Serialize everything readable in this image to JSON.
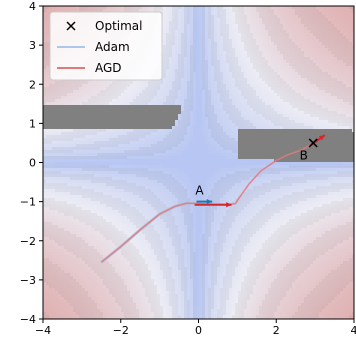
{
  "chart_data": {
    "type": "line",
    "xlim": [
      -4,
      4
    ],
    "ylim": [
      -4,
      4
    ],
    "x_ticks": [
      -4,
      -2,
      0,
      2,
      4
    ],
    "y_ticks": [
      -4,
      -3,
      -2,
      -1,
      0,
      1,
      2,
      3,
      4
    ],
    "x_tick_labels": [
      "−4",
      "−2",
      "0",
      "2",
      "4"
    ],
    "y_tick_labels": [
      "−4",
      "−3",
      "−2",
      "−1",
      "0",
      "1",
      "2",
      "3",
      "4"
    ],
    "grid": false,
    "legend_position": "top-left",
    "legend": [
      {
        "label": "Optimal",
        "marker": "x",
        "color": "#000000"
      },
      {
        "label": "Adam",
        "color": "#aec7e8"
      },
      {
        "label": "AGD",
        "color": "#e07a7a"
      }
    ],
    "optimal_point": {
      "x": 2.95,
      "y": 0.5
    },
    "annotations": [
      {
        "text": "A",
        "x": -0.08,
        "y": -0.82
      },
      {
        "text": "B",
        "x": 2.6,
        "y": 0.08
      }
    ],
    "series": [
      {
        "name": "Adam",
        "color": "#aec7e8",
        "x": [
          -2.5,
          -2.0,
          -1.5,
          -1.0,
          -0.6,
          -0.3,
          0.0,
          0.2,
          0.4
        ],
        "y": [
          -2.55,
          -2.15,
          -1.72,
          -1.32,
          -1.12,
          -1.04,
          -1.03,
          -1.03,
          -1.02
        ]
      },
      {
        "name": "AGD",
        "color": "#e07a7a",
        "x": [
          -2.5,
          -2.0,
          -1.5,
          -1.0,
          -0.6,
          -0.3,
          0.0,
          0.4,
          0.8,
          0.95,
          1.05,
          1.3,
          1.6,
          2.0,
          2.3,
          2.6,
          2.9,
          3.1
        ],
        "y": [
          -2.55,
          -2.15,
          -1.72,
          -1.32,
          -1.12,
          -1.04,
          -1.05,
          -1.07,
          -1.07,
          -1.05,
          -0.9,
          -0.55,
          -0.22,
          0.05,
          0.2,
          0.3,
          0.45,
          0.6
        ]
      }
    ]
  }
}
